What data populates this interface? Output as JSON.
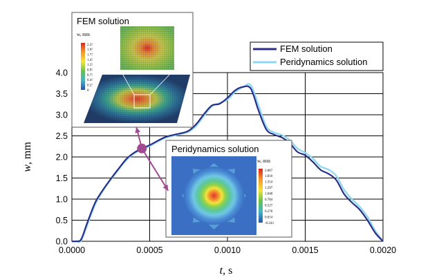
{
  "chart_data": {
    "type": "line",
    "xlabel": "t, s",
    "xlabel_var": "t",
    "xlabel_unit": ", s",
    "ylabel": "w, mm",
    "ylabel_var": "w",
    "ylabel_unit": ", mm",
    "xlim": [
      0,
      0.002
    ],
    "ylim": [
      0,
      4.0
    ],
    "xticks": [
      0,
      0.0005,
      0.001,
      0.0015,
      0.002
    ],
    "xtick_labels": [
      "0.0000",
      "0.0005",
      "0.0010",
      "0.0015",
      "0.0020"
    ],
    "yticks": [
      0,
      0.5,
      1.0,
      1.5,
      2.0,
      2.5,
      3.0,
      3.5,
      4.0
    ],
    "ytick_labels": [
      "0.0",
      "0.5",
      "1.0",
      "1.5",
      "2.0",
      "2.5",
      "3.0",
      "3.5",
      "4.0"
    ],
    "grid": true,
    "legend_position": "top-right",
    "series": [
      {
        "name": "FEM solution",
        "color": "#2b2e86",
        "x": [
          0,
          3e-05,
          6e-05,
          0.0001,
          0.00015,
          0.0002,
          0.00025,
          0.0003,
          0.00035,
          0.0004,
          0.00045,
          0.0005,
          0.00055,
          0.0006,
          0.00065,
          0.0007,
          0.00075,
          0.0008,
          0.00085,
          0.0009,
          0.00095,
          0.001,
          0.00105,
          0.0011,
          0.00115,
          0.0012,
          0.00125,
          0.0013,
          0.00135,
          0.0014,
          0.00145,
          0.0015,
          0.00155,
          0.0016,
          0.00165,
          0.0017,
          0.00175,
          0.0018,
          0.00185,
          0.0019,
          0.00195,
          0.002
        ],
        "y": [
          0,
          0.0,
          0.05,
          0.45,
          0.92,
          1.22,
          1.48,
          1.72,
          1.95,
          2.1,
          2.2,
          2.28,
          2.38,
          2.47,
          2.52,
          2.56,
          2.62,
          2.78,
          3.02,
          3.22,
          3.26,
          3.4,
          3.58,
          3.66,
          3.62,
          3.1,
          2.65,
          2.53,
          2.46,
          2.33,
          2.12,
          2.04,
          1.88,
          1.69,
          1.6,
          1.45,
          1.12,
          0.92,
          0.75,
          0.5,
          0.2,
          0.0
        ]
      },
      {
        "name": "Peridynamics solution",
        "color": "#8fd8ef",
        "x": [
          0,
          3e-05,
          6e-05,
          0.0001,
          0.00015,
          0.0002,
          0.00025,
          0.0003,
          0.00035,
          0.0004,
          0.00045,
          0.0005,
          0.00055,
          0.0006,
          0.00065,
          0.0007,
          0.00075,
          0.0008,
          0.00085,
          0.0009,
          0.00095,
          0.001,
          0.00105,
          0.0011,
          0.00115,
          0.0012,
          0.00125,
          0.0013,
          0.00135,
          0.0014,
          0.00145,
          0.0015,
          0.00155,
          0.0016,
          0.00165,
          0.0017,
          0.00175,
          0.0018,
          0.00185,
          0.0019,
          0.00195,
          0.002
        ],
        "y": [
          0,
          0.0,
          0.02,
          0.4,
          0.88,
          1.2,
          1.46,
          1.7,
          1.93,
          2.08,
          2.18,
          2.26,
          2.36,
          2.45,
          2.5,
          2.54,
          2.6,
          2.74,
          2.98,
          3.2,
          3.28,
          3.36,
          3.54,
          3.66,
          3.7,
          3.22,
          2.72,
          2.58,
          2.52,
          2.4,
          2.2,
          2.1,
          1.96,
          1.77,
          1.7,
          1.55,
          1.22,
          1.0,
          0.82,
          0.58,
          0.25,
          0.0
        ]
      }
    ],
    "marker": {
      "x": 0.00045,
      "y": 2.2,
      "color": "#a24a8f"
    },
    "annotations": {
      "fem_inset_title": "FEM solution",
      "peri_inset_title": "Peridynamics solution",
      "fem_colorbar_title": "w, mm",
      "fem_colorbar_labels": [
        "2.2!",
        "1.9!",
        "1.7!",
        "1.4!",
        "1.2!",
        "0.9!",
        "0.7!",
        "0.4!",
        "0.2!",
        "0"
      ],
      "peri_colorbar_title": "w, mm",
      "peri_colorbar_labels": [
        "2.067",
        "1.810",
        "1.554",
        "1.297",
        "1.040",
        "0.784",
        "0.527",
        "0.270",
        "0.014",
        "-0.243"
      ]
    }
  }
}
